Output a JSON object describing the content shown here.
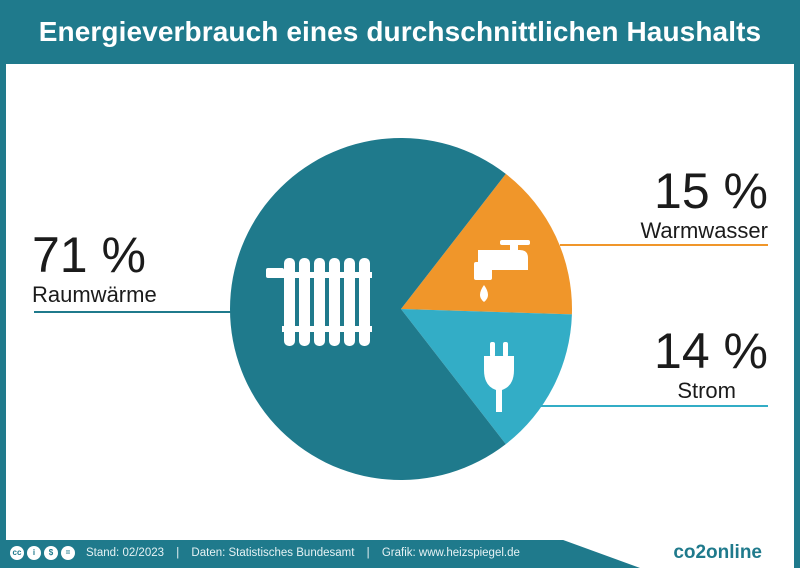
{
  "title": "Energieverbrauch eines durchschnittlichen Haushalts",
  "chart_data": {
    "type": "pie",
    "slices": [
      {
        "label": "Raumwärme",
        "value": 71,
        "display": "71 %",
        "color": "#1f7a8c",
        "icon": "radiator-icon"
      },
      {
        "label": "Warmwasser",
        "value": 15,
        "display": "15 %",
        "color": "#f0962a",
        "icon": "water-tap-icon"
      },
      {
        "label": "Strom",
        "value": 14,
        "display": "14 %",
        "color": "#33adc6",
        "icon": "power-plug-icon"
      }
    ]
  },
  "footer": {
    "license_icons": [
      "cc-icon",
      "by-icon",
      "nc-icon",
      "sa-icon"
    ],
    "stand": "Stand: 02/2023",
    "daten": "Daten: Statistisches Bundesamt",
    "grafik": "Grafik: www.heizspiegel.de",
    "separator": "|",
    "brand": "co2online"
  }
}
